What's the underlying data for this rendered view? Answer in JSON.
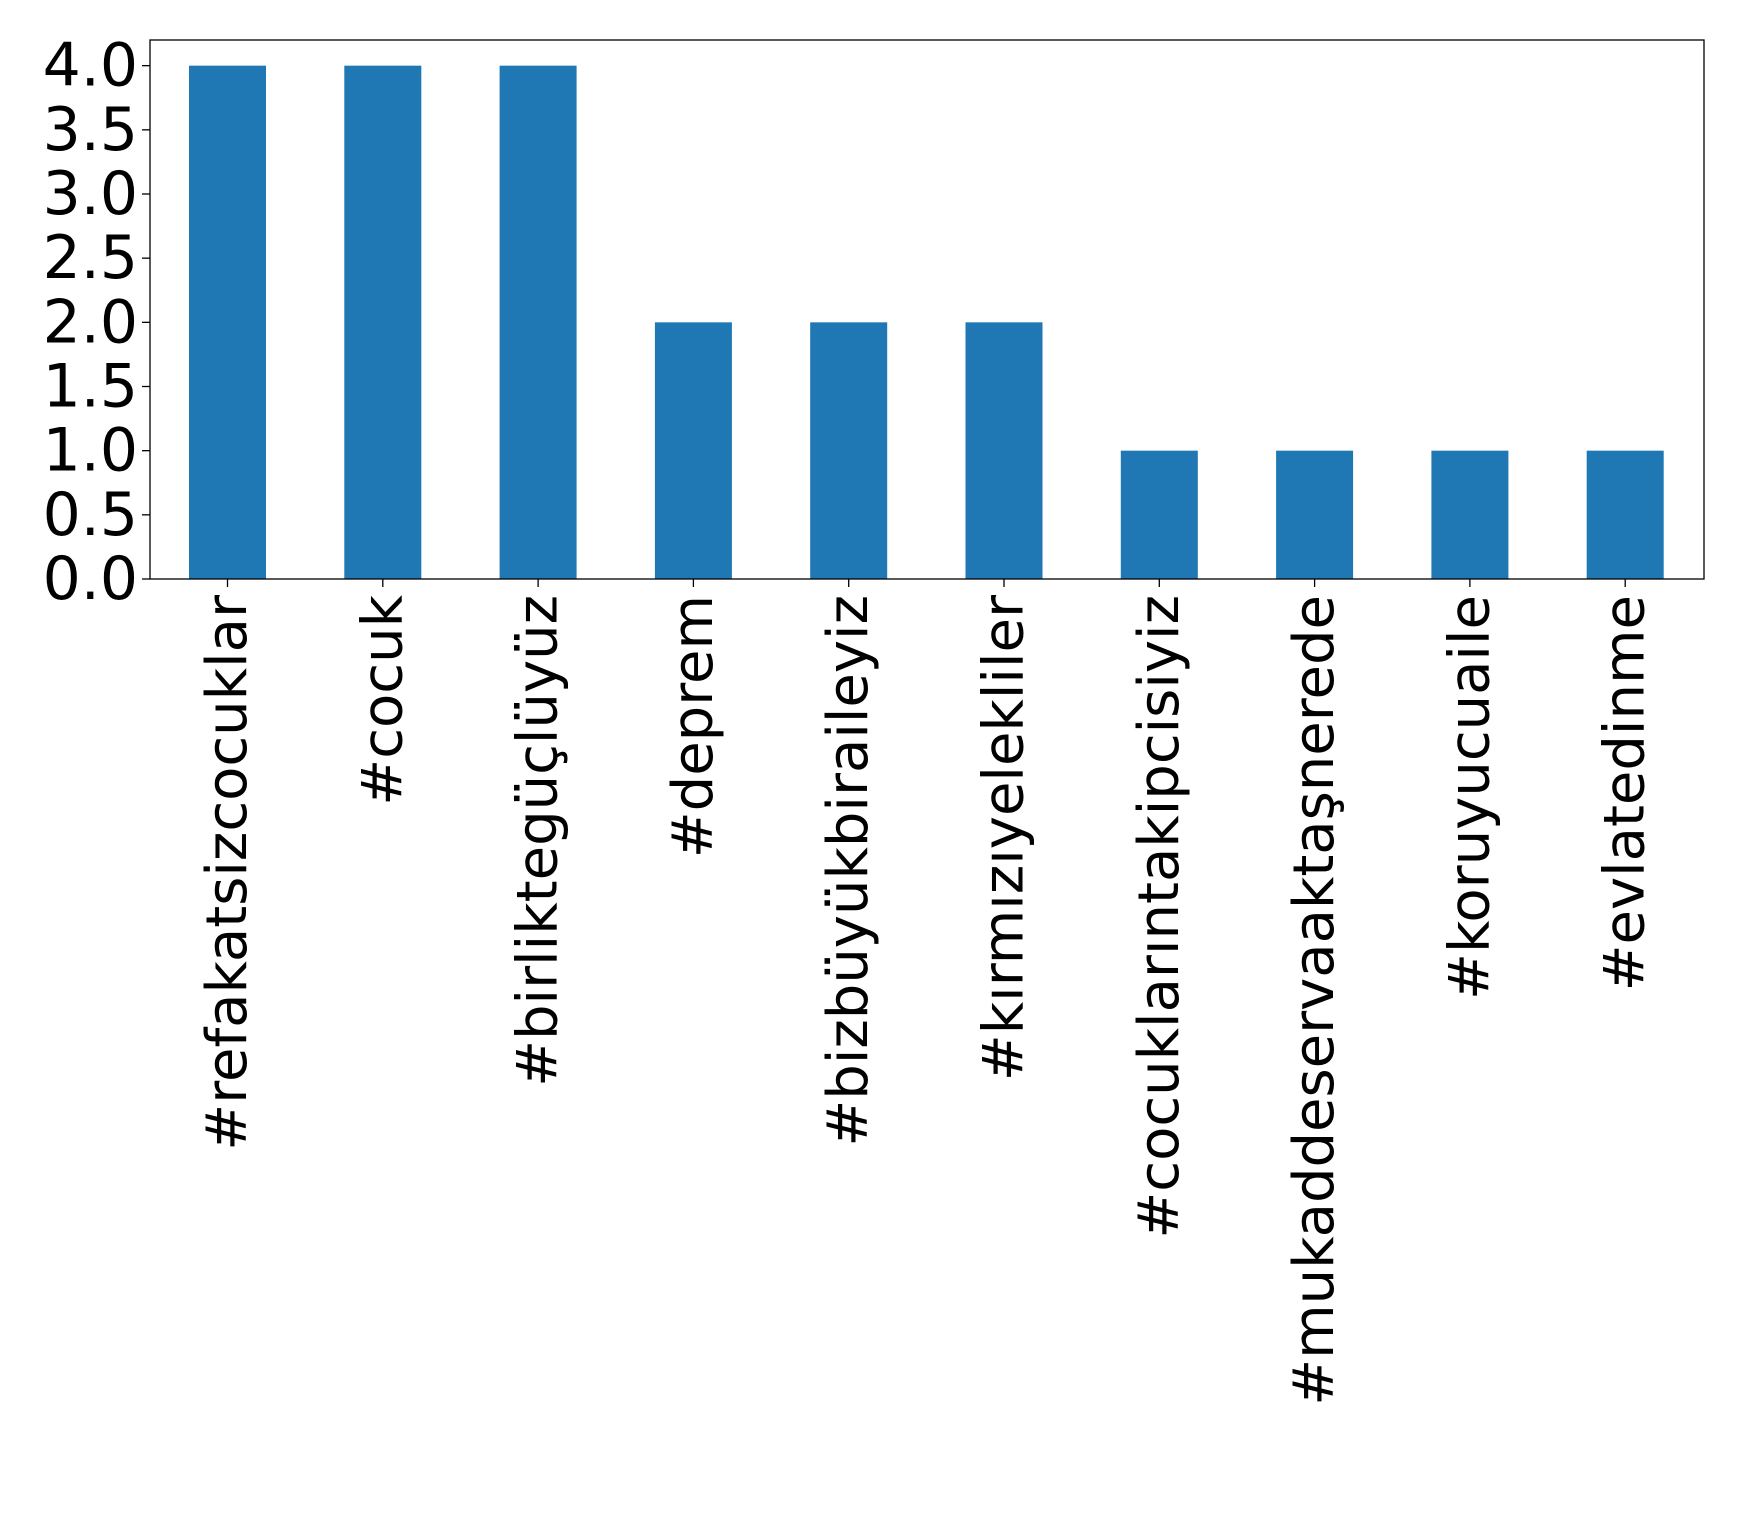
{
  "chart_data": {
    "type": "bar",
    "title": "",
    "xlabel": "",
    "ylabel": "",
    "categories": [
      "#refakatsizcocuklar",
      "#cocuk",
      "#birliktegüçlüyüz",
      "#deprem",
      "#bizbüyükbiraileyiz",
      "#kırmızıyelekliler",
      "#cocuklarıntakipcisiyiz",
      "#mukaddeservaaktaşnerede",
      "#koruyucuaile",
      "#evlatedinme"
    ],
    "values": [
      4,
      4,
      4,
      2,
      2,
      2,
      1,
      1,
      1,
      1
    ],
    "ylim": [
      0,
      4.2
    ],
    "yticks": [
      0.0,
      0.5,
      1.0,
      1.5,
      2.0,
      2.5,
      3.0,
      3.5,
      4.0
    ],
    "ytick_labels": [
      "0.0",
      "0.5",
      "1.0",
      "1.5",
      "2.0",
      "2.5",
      "3.0",
      "3.5",
      "4.0"
    ],
    "grid": false,
    "legend": "none",
    "colors": {
      "bar": "#1f77b4",
      "axis": "#000000",
      "background": "#ffffff"
    }
  }
}
